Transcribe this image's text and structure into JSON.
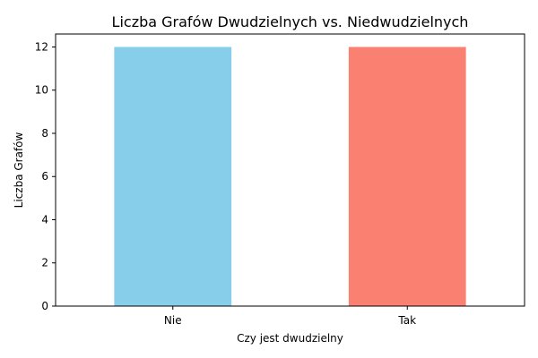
{
  "chart_data": {
    "type": "bar",
    "title": "Liczba Grafów Dwudzielnych vs. Niedwudzielnych",
    "xlabel": "Czy jest dwudzielny",
    "ylabel": "Liczba Grafów",
    "categories": [
      "Nie",
      "Tak"
    ],
    "values": [
      12,
      12
    ],
    "colors": [
      "#87ceeb",
      "#fa8072"
    ],
    "ylim": [
      0,
      12.6
    ],
    "yticks": [
      0,
      2,
      4,
      6,
      8,
      10,
      12
    ],
    "grid": false,
    "legend": "none"
  }
}
